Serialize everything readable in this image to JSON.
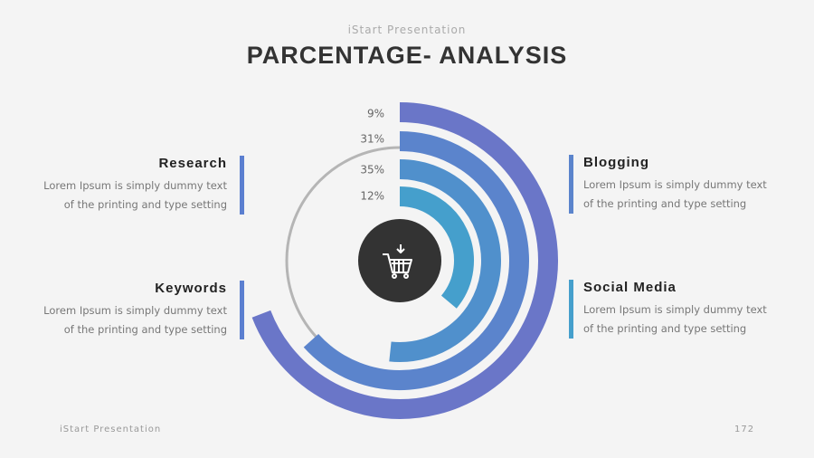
{
  "header": {
    "subtitle": "iStart Presentation",
    "title": "PARCENTAGE- ANALYSIS"
  },
  "rings": [
    {
      "label": "9%"
    },
    {
      "label": "31%"
    },
    {
      "label": "35%"
    },
    {
      "label": "12%"
    }
  ],
  "items": [
    {
      "title": "Research",
      "text": "Lorem Ipsum is simply dummy text of the printing and type setting"
    },
    {
      "title": "Keywords",
      "text": "Lorem Ipsum is simply dummy text of the printing and type setting"
    },
    {
      "title": "Blogging",
      "text": "Lorem Ipsum is simply dummy text of the printing and type setting"
    },
    {
      "title": "Social Media",
      "text": "Lorem Ipsum is simply dummy text of the printing and type setting"
    }
  ],
  "footer": {
    "brand": "iStart Presentation",
    "page": "172"
  }
}
